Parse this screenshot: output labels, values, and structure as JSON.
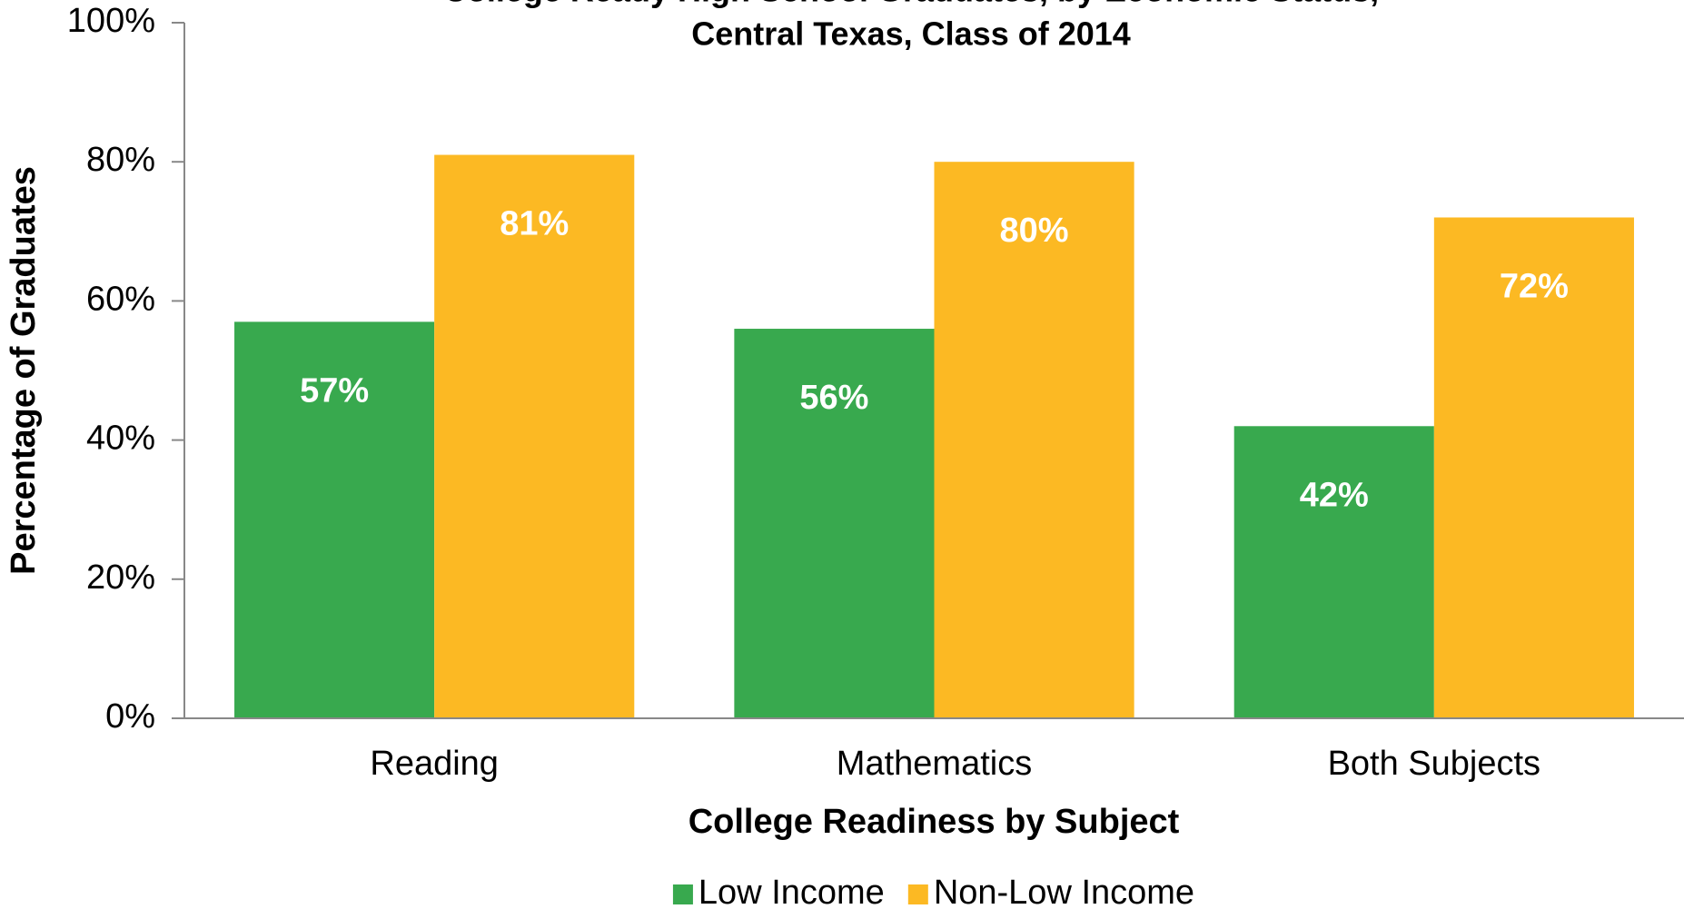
{
  "chart_data": {
    "type": "bar",
    "title": [
      "College Ready High School Graduates, by Economic Status,",
      "Central Texas, Class of 2014"
    ],
    "categories": [
      "Reading",
      "Mathematics",
      "Both Subjects"
    ],
    "series": [
      {
        "name": "Low Income",
        "color": "#38a94e",
        "values": [
          57,
          56,
          42
        ],
        "value_labels": [
          "57%",
          "56%",
          "42%"
        ]
      },
      {
        "name": "Non-Low Income",
        "color": "#fcb923",
        "values": [
          81,
          80,
          72
        ],
        "value_labels": [
          "81%",
          "80%",
          "72%"
        ]
      }
    ],
    "xlabel": "College Readiness by Subject",
    "ylabel": "Percentage of Graduates",
    "ylim": [
      0,
      100
    ],
    "yticks": [
      {
        "value": 0,
        "label": "0%"
      },
      {
        "value": 20,
        "label": "20%"
      },
      {
        "value": 40,
        "label": "40%"
      },
      {
        "value": 60,
        "label": "60%"
      },
      {
        "value": 80,
        "label": "80%"
      },
      {
        "value": 100,
        "label": "100%"
      }
    ],
    "grid": false,
    "legend": "bottom"
  }
}
